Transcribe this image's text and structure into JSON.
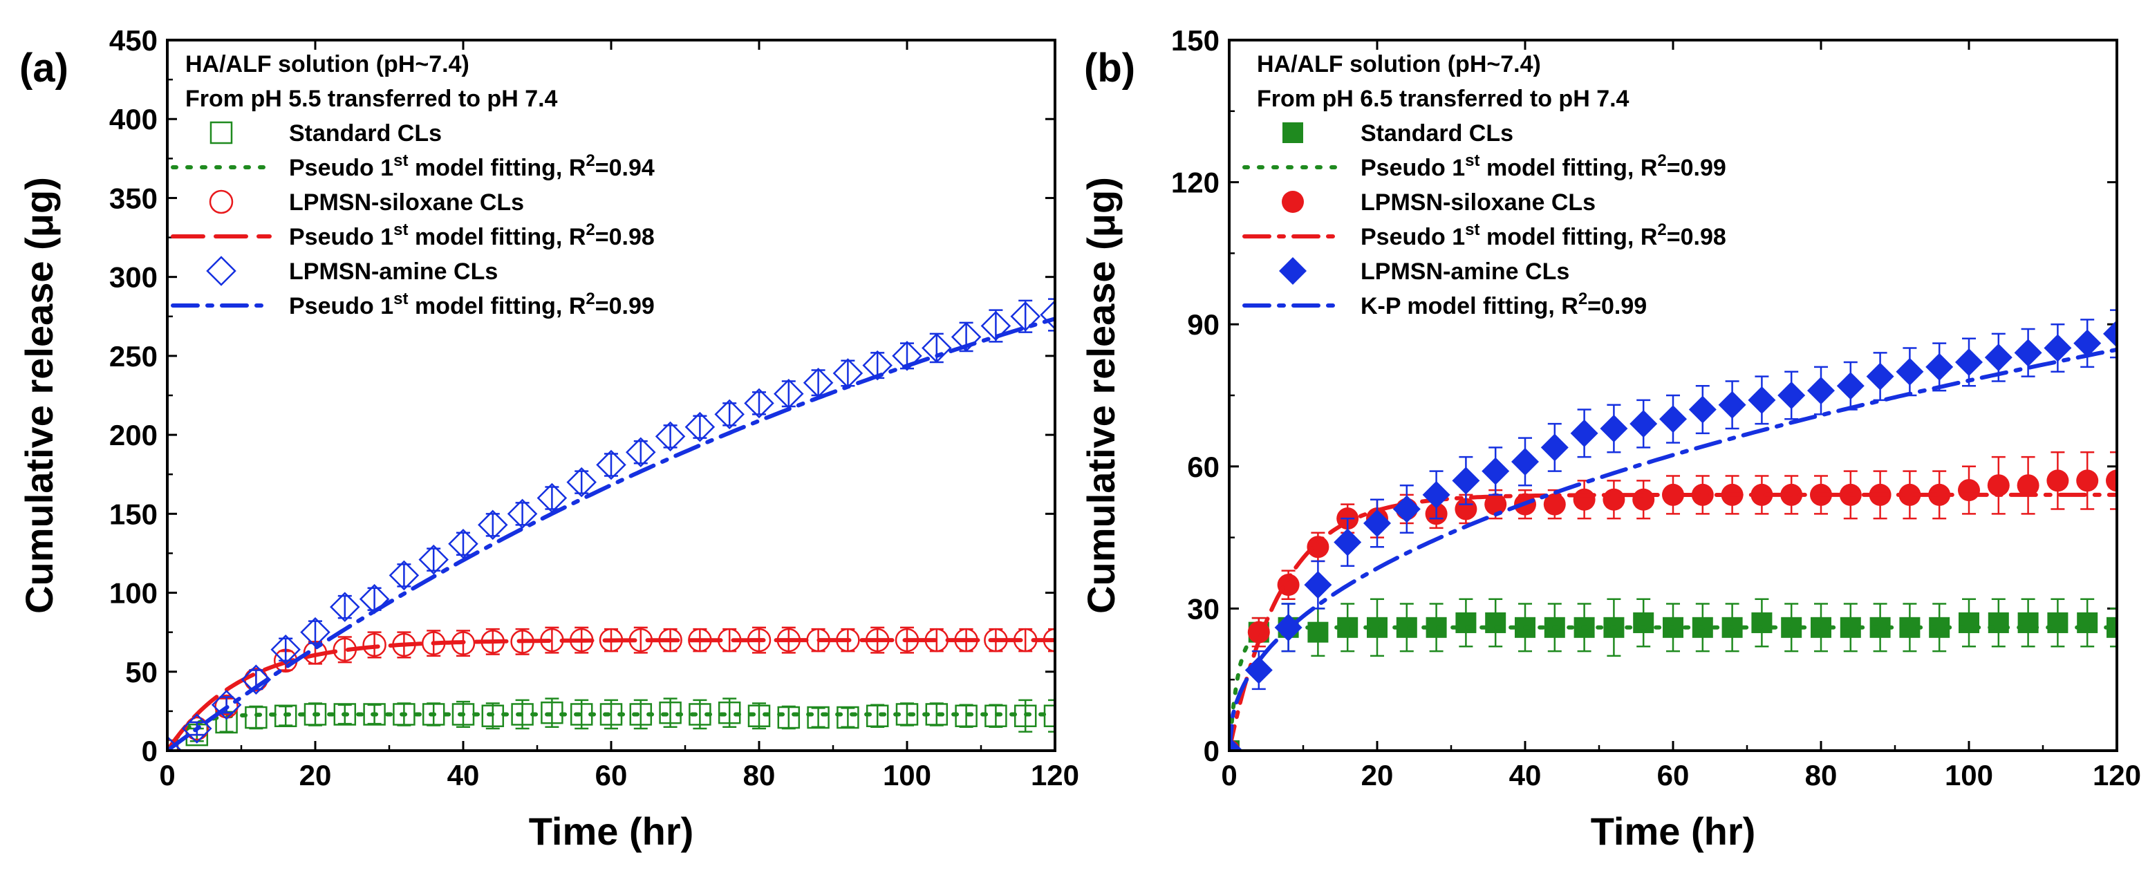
{
  "chart_data": [
    {
      "type": "scatter",
      "panel_label": "(a)",
      "xlabel": "Time (hr)",
      "ylabel": "Cumulative release (μg)",
      "xlim": [
        0,
        120
      ],
      "ylim": [
        0,
        450
      ],
      "xticks": [
        0,
        20,
        40,
        60,
        80,
        100,
        120
      ],
      "yticks": [
        0,
        50,
        100,
        150,
        200,
        250,
        300,
        350,
        400,
        450
      ],
      "legend_header": [
        "HA/ALF solution (pH~7.4)",
        "From pH 5.5 transferred to pH 7.4"
      ],
      "x": [
        0,
        4,
        8,
        12,
        16,
        20,
        24,
        28,
        32,
        36,
        40,
        44,
        48,
        52,
        56,
        60,
        64,
        68,
        72,
        76,
        80,
        84,
        88,
        92,
        96,
        100,
        104,
        108,
        112,
        116,
        120
      ],
      "series": [
        {
          "name": "Standard CLs",
          "marker": "square-open",
          "color": "#1f8a1f",
          "values": [
            0,
            10,
            18,
            21,
            22,
            23,
            23,
            23,
            23,
            23,
            23,
            22,
            23,
            24,
            23,
            23,
            23,
            24,
            23,
            24,
            22,
            21,
            21,
            21,
            22,
            23,
            23,
            22,
            22,
            22,
            22
          ],
          "errors": [
            0,
            4,
            6,
            7,
            6,
            7,
            6,
            6,
            7,
            7,
            8,
            8,
            9,
            9,
            9,
            9,
            9,
            9,
            9,
            9,
            8,
            7,
            6,
            6,
            7,
            7,
            7,
            7,
            7,
            10,
            10
          ]
        },
        {
          "name": "Pseudo 1st model fitting, R2=0.94",
          "label_prefix": "Pseudo 1",
          "label_sup": "st",
          "label_mid": " model fitting, R",
          "label_sup2": "2",
          "label_suffix": "=0.94",
          "line": "dotted",
          "color": "#1f8a1f",
          "fit": {
            "model": "pseudo1",
            "qe": 23,
            "k": 0.35
          }
        },
        {
          "name": "LPMSN-siloxane CLs",
          "marker": "circle-open",
          "color": "#e8191c",
          "values": [
            0,
            14,
            28,
            45,
            57,
            62,
            64,
            67,
            67,
            68,
            68,
            69,
            69,
            70,
            70,
            70,
            70,
            70,
            70,
            70,
            70,
            70,
            70,
            70,
            70,
            70,
            70,
            70,
            70,
            70,
            70
          ],
          "errors": [
            0,
            4,
            5,
            6,
            6,
            7,
            8,
            8,
            8,
            8,
            8,
            8,
            8,
            8,
            8,
            7,
            8,
            7,
            7,
            7,
            8,
            8,
            7,
            7,
            8,
            8,
            7,
            7,
            7,
            7,
            7
          ]
        },
        {
          "name": "Pseudo 1st model fitting, R2=0.98",
          "label_prefix": "Pseudo 1",
          "label_sup": "st",
          "label_mid": " model fitting, R",
          "label_sup2": "2",
          "label_suffix": "=0.98",
          "line": "dashed",
          "color": "#e8191c",
          "fit": {
            "model": "pseudo1",
            "qe": 70,
            "k": 0.1
          }
        },
        {
          "name": "LPMSN-amine CLs",
          "marker": "diamond-open",
          "color": "#1530e0",
          "values": [
            0,
            14,
            29,
            45,
            64,
            75,
            91,
            96,
            111,
            121,
            131,
            143,
            150,
            160,
            170,
            181,
            189,
            199,
            205,
            213,
            220,
            226,
            233,
            239,
            244,
            250,
            255,
            262,
            269,
            275,
            276
          ],
          "errors": [
            0,
            4,
            5,
            6,
            7,
            7,
            7,
            7,
            7,
            7,
            7,
            7,
            7,
            7,
            7,
            7,
            7,
            7,
            7,
            7,
            7,
            8,
            8,
            8,
            8,
            8,
            9,
            9,
            10,
            10,
            10
          ]
        },
        {
          "name": "Pseudo 1st model fitting, R2=0.99",
          "label_prefix": "Pseudo 1",
          "label_sup": "st",
          "label_mid": " model fitting, R",
          "label_sup2": "2",
          "label_suffix": "=0.99",
          "line": "dashdot",
          "color": "#1530e0",
          "fit": {
            "model": "pseudo1",
            "qe": 450,
            "k": 0.0078
          }
        }
      ]
    },
    {
      "type": "scatter",
      "panel_label": "(b)",
      "xlabel": "Time (hr)",
      "ylabel": "Cumulative release (μg)",
      "xlim": [
        0,
        120
      ],
      "ylim": [
        0,
        150
      ],
      "xticks": [
        0,
        20,
        40,
        60,
        80,
        100,
        120
      ],
      "yticks": [
        0,
        30,
        60,
        90,
        120,
        150
      ],
      "legend_header": [
        "HA/ALF solution (pH~7.4)",
        "From pH 6.5 transferred to pH 7.4"
      ],
      "x": [
        0,
        4,
        8,
        12,
        16,
        20,
        24,
        28,
        32,
        36,
        40,
        44,
        48,
        52,
        56,
        60,
        64,
        68,
        72,
        76,
        80,
        84,
        88,
        92,
        96,
        100,
        104,
        108,
        112,
        116,
        120
      ],
      "series": [
        {
          "name": "Standard CLs",
          "marker": "square-filled",
          "color": "#1f8a1f",
          "values": [
            0,
            25,
            26,
            25,
            26,
            26,
            26,
            26,
            27,
            27,
            26,
            26,
            26,
            26,
            27,
            26,
            26,
            26,
            27,
            26,
            26,
            26,
            26,
            26,
            26,
            27,
            27,
            27,
            27,
            27,
            26
          ],
          "errors": [
            0,
            3,
            5,
            5,
            5,
            6,
            5,
            5,
            5,
            5,
            5,
            5,
            5,
            6,
            5,
            5,
            5,
            5,
            5,
            5,
            5,
            5,
            5,
            5,
            5,
            5,
            5,
            5,
            5,
            5,
            4
          ]
        },
        {
          "name": "Pseudo 1st model fitting, R2=0.99",
          "label_prefix": "Pseudo 1",
          "label_sup": "st",
          "label_mid": " model fitting, R",
          "label_sup2": "2",
          "label_suffix": "=0.99",
          "line": "dotted",
          "color": "#1f8a1f",
          "fit": {
            "model": "pseudo1",
            "qe": 26,
            "k": 0.8
          }
        },
        {
          "name": "LPMSN-siloxane CLs",
          "marker": "circle-filled",
          "color": "#e8191c",
          "values": [
            0,
            25,
            35,
            43,
            49,
            49,
            51,
            50,
            51,
            52,
            52,
            52,
            53,
            53,
            53,
            54,
            54,
            54,
            54,
            54,
            54,
            54,
            54,
            54,
            54,
            55,
            56,
            56,
            57,
            57,
            57
          ],
          "errors": [
            0,
            3,
            3,
            3,
            3,
            4,
            3,
            3,
            3,
            3,
            3,
            3,
            4,
            4,
            4,
            4,
            4,
            4,
            4,
            4,
            4,
            5,
            5,
            5,
            5,
            5,
            6,
            6,
            6,
            6,
            6
          ]
        },
        {
          "name": "Pseudo 1st model fitting, R2=0.98",
          "label_prefix": "Pseudo 1",
          "label_sup": "st",
          "label_mid": " model fitting, R",
          "label_sup2": "2",
          "label_suffix": "=0.98",
          "line": "dashdot",
          "color": "#e8191c",
          "fit": {
            "model": "pseudo1",
            "qe": 54,
            "k": 0.14
          }
        },
        {
          "name": "LPMSN-amine CLs",
          "marker": "diamond-filled",
          "color": "#1530e0",
          "values": [
            0,
            17,
            26,
            35,
            44,
            48,
            51,
            54,
            57,
            59,
            61,
            64,
            67,
            68,
            69,
            70,
            72,
            73,
            74,
            75,
            76,
            77,
            79,
            80,
            81,
            82,
            83,
            84,
            85,
            86,
            88
          ],
          "errors": [
            0,
            4,
            5,
            5,
            5,
            5,
            5,
            5,
            5,
            5,
            5,
            5,
            5,
            5,
            5,
            5,
            5,
            5,
            5,
            5,
            5,
            5,
            5,
            5,
            5,
            5,
            5,
            5,
            5,
            5,
            5
          ]
        },
        {
          "name": "K-P model fitting, R2=0.99",
          "label_prefix": "K-P model fitting, R",
          "label_sup2": "2",
          "label_suffix": "=0.99",
          "line": "dashdot",
          "color": "#1530e0",
          "fit": {
            "model": "kp",
            "k": 10.3,
            "n": 0.44
          }
        }
      ]
    }
  ]
}
